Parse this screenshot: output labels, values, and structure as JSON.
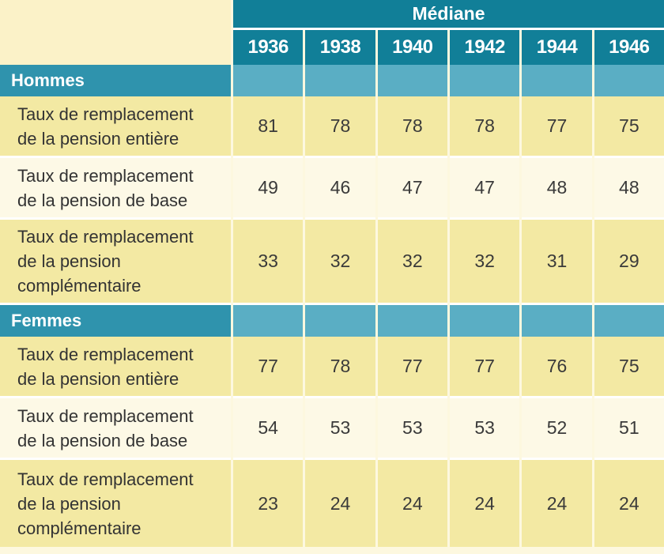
{
  "table": {
    "header": "Médiane",
    "years": [
      "1936",
      "1938",
      "1940",
      "1942",
      "1944",
      "1946"
    ],
    "groups": [
      {
        "label": "Hommes",
        "rows": [
          {
            "label_lines": [
              "Taux de remplacement",
              "de la pension entière"
            ],
            "values": [
              "81",
              "78",
              "78",
              "78",
              "77",
              "75"
            ]
          },
          {
            "label_lines": [
              "Taux de remplacement",
              "de la pension de base"
            ],
            "values": [
              "49",
              "46",
              "47",
              "47",
              "48",
              "48"
            ]
          },
          {
            "label_lines": [
              "Taux de remplacement",
              "de la pension",
              "complémentaire"
            ],
            "values": [
              "33",
              "32",
              "32",
              "32",
              "31",
              "29"
            ]
          }
        ]
      },
      {
        "label": "Femmes",
        "rows": [
          {
            "label_lines": [
              "Taux de remplacement",
              "de la pension entière"
            ],
            "values": [
              "77",
              "78",
              "77",
              "77",
              "76",
              "75"
            ]
          },
          {
            "label_lines": [
              "Taux de remplacement",
              "de la pension de base"
            ],
            "values": [
              "54",
              "53",
              "53",
              "53",
              "52",
              "51"
            ]
          },
          {
            "label_lines": [
              "Taux de remplacement",
              "de la pension",
              "complémentaire"
            ],
            "values": [
              "23",
              "24",
              "24",
              "24",
              "24",
              "24"
            ]
          }
        ]
      }
    ]
  }
}
